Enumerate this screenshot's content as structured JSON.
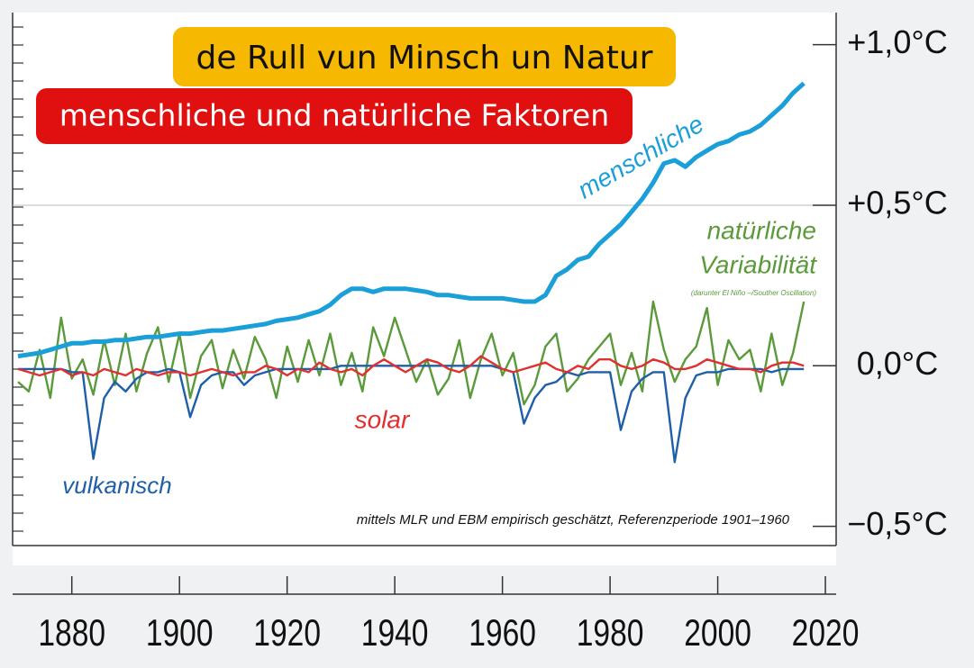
{
  "chart_data": {
    "type": "line",
    "title": "de Rull vun Minsch un Natur",
    "subtitle": "menschliche und natürliche Faktoren",
    "note": "mittels MLR und EBM empirisch geschätzt, Referenzperiode 1901–1960",
    "annotations": [
      "Variabilität",
      "(darunter El Niño –/Souther Oscillation)"
    ],
    "x": [
      1870,
      1872,
      1874,
      1876,
      1878,
      1880,
      1882,
      1884,
      1886,
      1888,
      1890,
      1892,
      1894,
      1896,
      1898,
      1900,
      1902,
      1904,
      1906,
      1908,
      1910,
      1912,
      1914,
      1916,
      1918,
      1920,
      1922,
      1924,
      1926,
      1928,
      1930,
      1932,
      1934,
      1936,
      1938,
      1940,
      1942,
      1944,
      1946,
      1948,
      1950,
      1952,
      1954,
      1956,
      1958,
      1960,
      1962,
      1964,
      1966,
      1968,
      1970,
      1972,
      1974,
      1976,
      1978,
      1980,
      1982,
      1984,
      1986,
      1988,
      1990,
      1992,
      1994,
      1996,
      1998,
      2000,
      2002,
      2004,
      2006,
      2008,
      2010,
      2012,
      2014,
      2016
    ],
    "series": [
      {
        "name": "menschliche",
        "color": "#1a9fd8",
        "values": [
          0.03,
          0.035,
          0.04,
          0.05,
          0.06,
          0.07,
          0.07,
          0.075,
          0.075,
          0.08,
          0.08,
          0.085,
          0.09,
          0.09,
          0.095,
          0.1,
          0.1,
          0.105,
          0.11,
          0.11,
          0.115,
          0.12,
          0.125,
          0.13,
          0.14,
          0.145,
          0.15,
          0.16,
          0.17,
          0.19,
          0.22,
          0.24,
          0.24,
          0.23,
          0.24,
          0.24,
          0.24,
          0.235,
          0.23,
          0.22,
          0.22,
          0.215,
          0.21,
          0.21,
          0.21,
          0.21,
          0.205,
          0.2,
          0.2,
          0.22,
          0.28,
          0.3,
          0.33,
          0.34,
          0.38,
          0.41,
          0.44,
          0.48,
          0.52,
          0.57,
          0.63,
          0.64,
          0.62,
          0.65,
          0.67,
          0.69,
          0.7,
          0.72,
          0.73,
          0.75,
          0.78,
          0.81,
          0.85,
          0.88
        ]
      },
      {
        "name": "natürliche",
        "color": "#5a9a3a",
        "values": [
          -0.05,
          -0.08,
          0.05,
          -0.1,
          0.15,
          -0.04,
          0.02,
          -0.09,
          0.08,
          -0.06,
          0.1,
          -0.08,
          0.04,
          0.12,
          -0.05,
          0.1,
          -0.1,
          0.03,
          0.08,
          -0.07,
          0.05,
          -0.04,
          0.09,
          0.02,
          -0.1,
          0.06,
          -0.05,
          0.08,
          -0.03,
          0.1,
          -0.06,
          0.04,
          -0.08,
          0.12,
          0.03,
          0.15,
          0.05,
          -0.05,
          0.02,
          -0.09,
          -0.04,
          0.08,
          -0.1,
          0.02,
          0.1,
          -0.03,
          0.04,
          -0.12,
          -0.06,
          0.06,
          0.1,
          -0.08,
          -0.04,
          0.02,
          0.06,
          0.1,
          -0.06,
          0.04,
          -0.08,
          0.2,
          0.05,
          -0.05,
          0.02,
          0.06,
          0.18,
          -0.06,
          0.08,
          0.02,
          0.05,
          -0.08,
          0.1,
          -0.06,
          0.04,
          0.2
        ]
      },
      {
        "name": "solar",
        "color": "#e03030",
        "values": [
          -0.01,
          -0.02,
          -0.03,
          -0.02,
          -0.01,
          -0.03,
          -0.02,
          -0.03,
          -0.01,
          -0.02,
          -0.03,
          -0.01,
          -0.02,
          -0.03,
          -0.02,
          -0.02,
          -0.03,
          -0.02,
          -0.01,
          -0.02,
          -0.03,
          -0.02,
          -0.02,
          0.0,
          -0.01,
          -0.03,
          -0.01,
          -0.02,
          0.01,
          -0.01,
          -0.02,
          -0.01,
          -0.03,
          0.0,
          0.02,
          0.0,
          -0.02,
          0.0,
          0.02,
          0.01,
          -0.01,
          -0.02,
          0.0,
          0.03,
          0.01,
          -0.01,
          -0.02,
          -0.01,
          0.0,
          0.01,
          -0.01,
          -0.02,
          0.0,
          -0.01,
          0.02,
          0.02,
          0.0,
          -0.01,
          0.0,
          0.02,
          0.01,
          -0.01,
          -0.01,
          0.0,
          0.02,
          0.01,
          0.0,
          -0.01,
          -0.01,
          -0.02,
          0.0,
          0.01,
          0.01,
          0.0
        ]
      },
      {
        "name": "vulkanisch",
        "color": "#1f5fa8",
        "values": [
          -0.01,
          -0.01,
          -0.01,
          -0.01,
          -0.01,
          -0.02,
          -0.02,
          -0.29,
          -0.1,
          -0.05,
          -0.08,
          -0.04,
          -0.02,
          -0.02,
          -0.01,
          -0.02,
          -0.16,
          -0.06,
          -0.03,
          -0.02,
          -0.02,
          -0.06,
          -0.03,
          -0.02,
          -0.01,
          -0.01,
          -0.01,
          -0.01,
          -0.01,
          -0.01,
          0.0,
          0.0,
          0.0,
          0.0,
          0.0,
          0.0,
          0.0,
          0.0,
          0.0,
          0.0,
          0.0,
          0.0,
          0.0,
          0.0,
          0.0,
          -0.01,
          -0.02,
          -0.18,
          -0.1,
          -0.06,
          -0.05,
          -0.02,
          -0.03,
          -0.02,
          -0.02,
          -0.02,
          -0.2,
          -0.08,
          -0.04,
          -0.02,
          -0.02,
          -0.3,
          -0.1,
          -0.03,
          -0.02,
          -0.02,
          -0.01,
          -0.01,
          -0.01,
          -0.01,
          -0.02,
          -0.01,
          -0.01,
          -0.01
        ]
      }
    ],
    "xlim": [
      1869,
      2022
    ],
    "xticks": [
      1880,
      1900,
      1920,
      1940,
      1960,
      1980,
      2000,
      2020
    ],
    "ylim": [
      -0.56,
      1.1
    ],
    "yticks": [
      {
        "value": 1.0,
        "label": "+1,0°C"
      },
      {
        "value": 0.5,
        "label": "+0,5°C"
      },
      {
        "value": 0.0,
        "label": "0,0°C"
      },
      {
        "value": -0.5,
        "label": "−0,5°C"
      }
    ],
    "grid_line": 0.5
  }
}
